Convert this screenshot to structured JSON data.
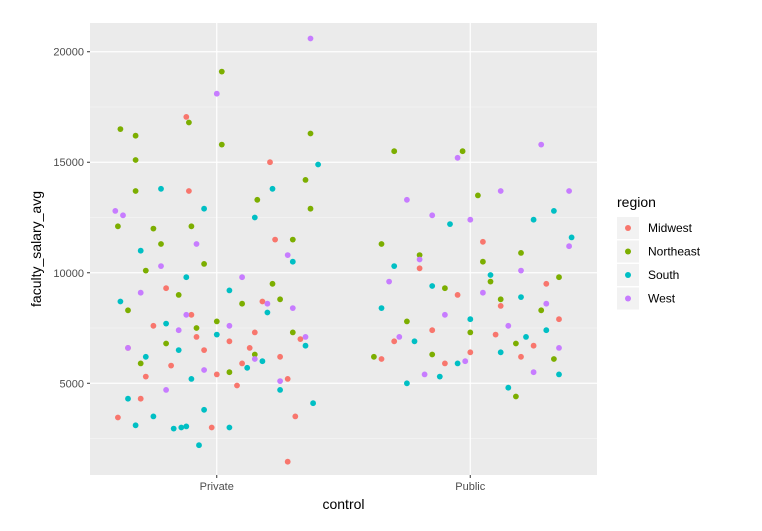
{
  "chart_data": {
    "type": "scatter",
    "title": "",
    "xlabel": "control",
    "ylabel": "faculty_salary_avg",
    "categories": [
      "Private",
      "Public"
    ],
    "ylim": [
      850,
      21300
    ],
    "yticks": [
      5000,
      10000,
      15000,
      20000
    ],
    "ytick_labels": [
      "5000",
      "10000",
      "15000",
      "20000"
    ],
    "grid": true,
    "jitter": true,
    "legend": {
      "title": "region",
      "position": "right",
      "items": [
        {
          "name": "Midwest",
          "color": "#F8766D"
        },
        {
          "name": "Northeast",
          "color": "#7CAE00"
        },
        {
          "name": "South",
          "color": "#00BFC4"
        },
        {
          "name": "West",
          "color": "#C77CFF"
        }
      ]
    },
    "series": [
      {
        "name": "Midwest",
        "points": [
          {
            "x": "Private",
            "offset": -0.12,
            "y": 17050
          },
          {
            "x": "Private",
            "offset": 0.21,
            "y": 15000
          },
          {
            "x": "Private",
            "offset": -0.11,
            "y": 13700
          },
          {
            "x": "Private",
            "offset": 0.23,
            "y": 11500
          },
          {
            "x": "Private",
            "offset": -0.39,
            "y": 3450
          },
          {
            "x": "Private",
            "offset": 0.31,
            "y": 3500
          },
          {
            "x": "Private",
            "offset": 0.28,
            "y": 1450
          },
          {
            "x": "Private",
            "offset": -0.02,
            "y": 3000
          },
          {
            "x": "Private",
            "offset": -0.3,
            "y": 4300
          },
          {
            "x": "Private",
            "offset": -0.18,
            "y": 5800
          },
          {
            "x": "Private",
            "offset": -0.05,
            "y": 6500
          },
          {
            "x": "Private",
            "offset": 0.05,
            "y": 6900
          },
          {
            "x": "Private",
            "offset": 0.15,
            "y": 7300
          },
          {
            "x": "Private",
            "offset": 0.25,
            "y": 6200
          },
          {
            "x": "Private",
            "offset": -0.25,
            "y": 7600
          },
          {
            "x": "Private",
            "offset": -0.1,
            "y": 8100
          },
          {
            "x": "Private",
            "offset": 0.1,
            "y": 5900
          },
          {
            "x": "Private",
            "offset": 0.33,
            "y": 7000
          },
          {
            "x": "Private",
            "offset": -0.35,
            "y": 6600
          },
          {
            "x": "Private",
            "offset": 0.0,
            "y": 5400
          },
          {
            "x": "Private",
            "offset": 0.18,
            "y": 8700
          },
          {
            "x": "Private",
            "offset": -0.2,
            "y": 9300
          },
          {
            "x": "Private",
            "offset": 0.08,
            "y": 4900
          },
          {
            "x": "Private",
            "offset": 0.28,
            "y": 5200
          },
          {
            "x": "Private",
            "offset": -0.08,
            "y": 7100
          },
          {
            "x": "Private",
            "offset": -0.28,
            "y": 5300
          },
          {
            "x": "Private",
            "offset": 0.13,
            "y": 6600
          },
          {
            "x": "Public",
            "offset": -0.3,
            "y": 6900
          },
          {
            "x": "Public",
            "offset": -0.15,
            "y": 7400
          },
          {
            "x": "Public",
            "offset": 0.0,
            "y": 6400
          },
          {
            "x": "Public",
            "offset": 0.12,
            "y": 8500
          },
          {
            "x": "Public",
            "offset": 0.25,
            "y": 6700
          },
          {
            "x": "Public",
            "offset": 0.35,
            "y": 7900
          },
          {
            "x": "Public",
            "offset": -0.2,
            "y": 10200
          },
          {
            "x": "Public",
            "offset": 0.1,
            "y": 7200
          },
          {
            "x": "Public",
            "offset": -0.05,
            "y": 9000
          },
          {
            "x": "Public",
            "offset": 0.3,
            "y": 9500
          },
          {
            "x": "Public",
            "offset": 0.2,
            "y": 6200
          },
          {
            "x": "Public",
            "offset": -0.35,
            "y": 6100
          },
          {
            "x": "Public",
            "offset": 0.05,
            "y": 11400
          },
          {
            "x": "Public",
            "offset": -0.1,
            "y": 5900
          }
        ]
      },
      {
        "name": "Northeast",
        "points": [
          {
            "x": "Private",
            "offset": 0.02,
            "y": 19100
          },
          {
            "x": "Private",
            "offset": -0.38,
            "y": 16500
          },
          {
            "x": "Private",
            "offset": -0.32,
            "y": 16200
          },
          {
            "x": "Private",
            "offset": -0.11,
            "y": 16800
          },
          {
            "x": "Private",
            "offset": 0.37,
            "y": 16300
          },
          {
            "x": "Private",
            "offset": 0.02,
            "y": 15800
          },
          {
            "x": "Private",
            "offset": -0.32,
            "y": 15100
          },
          {
            "x": "Private",
            "offset": 0.35,
            "y": 14200
          },
          {
            "x": "Private",
            "offset": -0.32,
            "y": 13700
          },
          {
            "x": "Private",
            "offset": 0.16,
            "y": 13300
          },
          {
            "x": "Private",
            "offset": -0.39,
            "y": 12100
          },
          {
            "x": "Private",
            "offset": 0.37,
            "y": 12900
          },
          {
            "x": "Private",
            "offset": -0.22,
            "y": 11300
          },
          {
            "x": "Private",
            "offset": -0.1,
            "y": 12100
          },
          {
            "x": "Private",
            "offset": 0.3,
            "y": 11500
          },
          {
            "x": "Private",
            "offset": -0.28,
            "y": 10100
          },
          {
            "x": "Private",
            "offset": -0.05,
            "y": 10400
          },
          {
            "x": "Private",
            "offset": 0.22,
            "y": 9500
          },
          {
            "x": "Private",
            "offset": -0.15,
            "y": 9000
          },
          {
            "x": "Private",
            "offset": 0.1,
            "y": 8600
          },
          {
            "x": "Private",
            "offset": -0.35,
            "y": 8300
          },
          {
            "x": "Private",
            "offset": 0.0,
            "y": 7800
          },
          {
            "x": "Private",
            "offset": 0.3,
            "y": 7300
          },
          {
            "x": "Private",
            "offset": -0.2,
            "y": 6800
          },
          {
            "x": "Private",
            "offset": 0.15,
            "y": 6300
          },
          {
            "x": "Private",
            "offset": -0.3,
            "y": 5900
          },
          {
            "x": "Private",
            "offset": 0.05,
            "y": 5500
          },
          {
            "x": "Private",
            "offset": 0.25,
            "y": 8800
          },
          {
            "x": "Private",
            "offset": -0.08,
            "y": 7500
          },
          {
            "x": "Private",
            "offset": -0.25,
            "y": 12000
          },
          {
            "x": "Public",
            "offset": -0.3,
            "y": 15500
          },
          {
            "x": "Public",
            "offset": -0.03,
            "y": 15500
          },
          {
            "x": "Public",
            "offset": 0.03,
            "y": 13500
          },
          {
            "x": "Public",
            "offset": -0.35,
            "y": 11300
          },
          {
            "x": "Public",
            "offset": -0.2,
            "y": 10800
          },
          {
            "x": "Public",
            "offset": 0.05,
            "y": 10500
          },
          {
            "x": "Public",
            "offset": 0.2,
            "y": 10900
          },
          {
            "x": "Public",
            "offset": 0.35,
            "y": 9800
          },
          {
            "x": "Public",
            "offset": -0.1,
            "y": 9300
          },
          {
            "x": "Public",
            "offset": 0.12,
            "y": 8800
          },
          {
            "x": "Public",
            "offset": 0.28,
            "y": 8300
          },
          {
            "x": "Public",
            "offset": -0.25,
            "y": 7800
          },
          {
            "x": "Public",
            "offset": 0.0,
            "y": 7300
          },
          {
            "x": "Public",
            "offset": 0.18,
            "y": 6800
          },
          {
            "x": "Public",
            "offset": -0.15,
            "y": 6300
          },
          {
            "x": "Public",
            "offset": 0.33,
            "y": 6100
          },
          {
            "x": "Public",
            "offset": 0.18,
            "y": 4400
          },
          {
            "x": "Public",
            "offset": -0.38,
            "y": 6200
          },
          {
            "x": "Public",
            "offset": 0.08,
            "y": 9600
          }
        ]
      },
      {
        "name": "South",
        "points": [
          {
            "x": "Private",
            "offset": -0.22,
            "y": 13800
          },
          {
            "x": "Private",
            "offset": 0.22,
            "y": 13800
          },
          {
            "x": "Private",
            "offset": 0.4,
            "y": 14900
          },
          {
            "x": "Private",
            "offset": -0.05,
            "y": 12900
          },
          {
            "x": "Private",
            "offset": 0.15,
            "y": 12500
          },
          {
            "x": "Private",
            "offset": -0.3,
            "y": 11000
          },
          {
            "x": "Private",
            "offset": 0.3,
            "y": 10500
          },
          {
            "x": "Private",
            "offset": -0.12,
            "y": 9800
          },
          {
            "x": "Private",
            "offset": 0.05,
            "y": 9200
          },
          {
            "x": "Private",
            "offset": -0.38,
            "y": 8700
          },
          {
            "x": "Private",
            "offset": 0.2,
            "y": 8200
          },
          {
            "x": "Private",
            "offset": -0.2,
            "y": 7700
          },
          {
            "x": "Private",
            "offset": 0.0,
            "y": 7200
          },
          {
            "x": "Private",
            "offset": 0.35,
            "y": 6700
          },
          {
            "x": "Private",
            "offset": -0.28,
            "y": 6200
          },
          {
            "x": "Private",
            "offset": 0.12,
            "y": 5700
          },
          {
            "x": "Private",
            "offset": -0.1,
            "y": 5200
          },
          {
            "x": "Private",
            "offset": 0.25,
            "y": 4700
          },
          {
            "x": "Private",
            "offset": -0.35,
            "y": 4300
          },
          {
            "x": "Private",
            "offset": 0.38,
            "y": 4100
          },
          {
            "x": "Private",
            "offset": -0.05,
            "y": 3800
          },
          {
            "x": "Private",
            "offset": -0.25,
            "y": 3500
          },
          {
            "x": "Private",
            "offset": -0.32,
            "y": 3100
          },
          {
            "x": "Private",
            "offset": -0.17,
            "y": 2950
          },
          {
            "x": "Private",
            "offset": -0.14,
            "y": 3000
          },
          {
            "x": "Private",
            "offset": -0.12,
            "y": 3050
          },
          {
            "x": "Private",
            "offset": 0.05,
            "y": 3000
          },
          {
            "x": "Private",
            "offset": -0.07,
            "y": 2200
          },
          {
            "x": "Private",
            "offset": 0.18,
            "y": 6000
          },
          {
            "x": "Private",
            "offset": -0.15,
            "y": 6500
          },
          {
            "x": "Public",
            "offset": 0.25,
            "y": 12400
          },
          {
            "x": "Public",
            "offset": -0.08,
            "y": 12200
          },
          {
            "x": "Public",
            "offset": 0.33,
            "y": 12800
          },
          {
            "x": "Public",
            "offset": 0.4,
            "y": 11600
          },
          {
            "x": "Public",
            "offset": -0.3,
            "y": 10300
          },
          {
            "x": "Public",
            "offset": 0.08,
            "y": 9900
          },
          {
            "x": "Public",
            "offset": -0.15,
            "y": 9400
          },
          {
            "x": "Public",
            "offset": 0.2,
            "y": 8900
          },
          {
            "x": "Public",
            "offset": -0.35,
            "y": 8400
          },
          {
            "x": "Public",
            "offset": 0.0,
            "y": 7900
          },
          {
            "x": "Public",
            "offset": 0.3,
            "y": 7400
          },
          {
            "x": "Public",
            "offset": -0.22,
            "y": 6900
          },
          {
            "x": "Public",
            "offset": 0.12,
            "y": 6400
          },
          {
            "x": "Public",
            "offset": -0.05,
            "y": 5900
          },
          {
            "x": "Public",
            "offset": 0.35,
            "y": 5400
          },
          {
            "x": "Public",
            "offset": -0.25,
            "y": 5000
          },
          {
            "x": "Public",
            "offset": 0.15,
            "y": 4800
          },
          {
            "x": "Public",
            "offset": -0.12,
            "y": 5300
          },
          {
            "x": "Public",
            "offset": 0.22,
            "y": 7100
          }
        ]
      },
      {
        "name": "West",
        "points": [
          {
            "x": "Private",
            "offset": 0.37,
            "y": 20600
          },
          {
            "x": "Private",
            "offset": 0.0,
            "y": 18100
          },
          {
            "x": "Private",
            "offset": -0.4,
            "y": 12800
          },
          {
            "x": "Private",
            "offset": -0.37,
            "y": 12600
          },
          {
            "x": "Private",
            "offset": -0.08,
            "y": 11300
          },
          {
            "x": "Private",
            "offset": 0.28,
            "y": 10800
          },
          {
            "x": "Private",
            "offset": -0.22,
            "y": 10300
          },
          {
            "x": "Private",
            "offset": 0.1,
            "y": 9800
          },
          {
            "x": "Private",
            "offset": -0.3,
            "y": 9100
          },
          {
            "x": "Private",
            "offset": 0.2,
            "y": 8600
          },
          {
            "x": "Private",
            "offset": -0.12,
            "y": 8100
          },
          {
            "x": "Private",
            "offset": 0.05,
            "y": 7600
          },
          {
            "x": "Private",
            "offset": 0.35,
            "y": 7100
          },
          {
            "x": "Private",
            "offset": -0.35,
            "y": 6600
          },
          {
            "x": "Private",
            "offset": 0.15,
            "y": 6100
          },
          {
            "x": "Private",
            "offset": -0.05,
            "y": 5600
          },
          {
            "x": "Private",
            "offset": 0.25,
            "y": 5100
          },
          {
            "x": "Private",
            "offset": -0.2,
            "y": 4700
          },
          {
            "x": "Private",
            "offset": 0.3,
            "y": 8400
          },
          {
            "x": "Private",
            "offset": -0.15,
            "y": 7400
          },
          {
            "x": "Public",
            "offset": -0.05,
            "y": 15200
          },
          {
            "x": "Public",
            "offset": 0.28,
            "y": 15800
          },
          {
            "x": "Public",
            "offset": 0.39,
            "y": 13700
          },
          {
            "x": "Public",
            "offset": 0.12,
            "y": 13700
          },
          {
            "x": "Public",
            "offset": -0.25,
            "y": 13300
          },
          {
            "x": "Public",
            "offset": -0.15,
            "y": 12600
          },
          {
            "x": "Public",
            "offset": 0.0,
            "y": 12400
          },
          {
            "x": "Public",
            "offset": 0.39,
            "y": 11200
          },
          {
            "x": "Public",
            "offset": -0.2,
            "y": 10600
          },
          {
            "x": "Public",
            "offset": 0.2,
            "y": 10100
          },
          {
            "x": "Public",
            "offset": -0.32,
            "y": 9600
          },
          {
            "x": "Public",
            "offset": 0.05,
            "y": 9100
          },
          {
            "x": "Public",
            "offset": 0.3,
            "y": 8600
          },
          {
            "x": "Public",
            "offset": -0.1,
            "y": 8100
          },
          {
            "x": "Public",
            "offset": 0.15,
            "y": 7600
          },
          {
            "x": "Public",
            "offset": -0.28,
            "y": 7100
          },
          {
            "x": "Public",
            "offset": 0.35,
            "y": 6600
          },
          {
            "x": "Public",
            "offset": -0.02,
            "y": 6000
          },
          {
            "x": "Public",
            "offset": 0.25,
            "y": 5500
          },
          {
            "x": "Public",
            "offset": -0.18,
            "y": 5400
          }
        ]
      }
    ]
  }
}
